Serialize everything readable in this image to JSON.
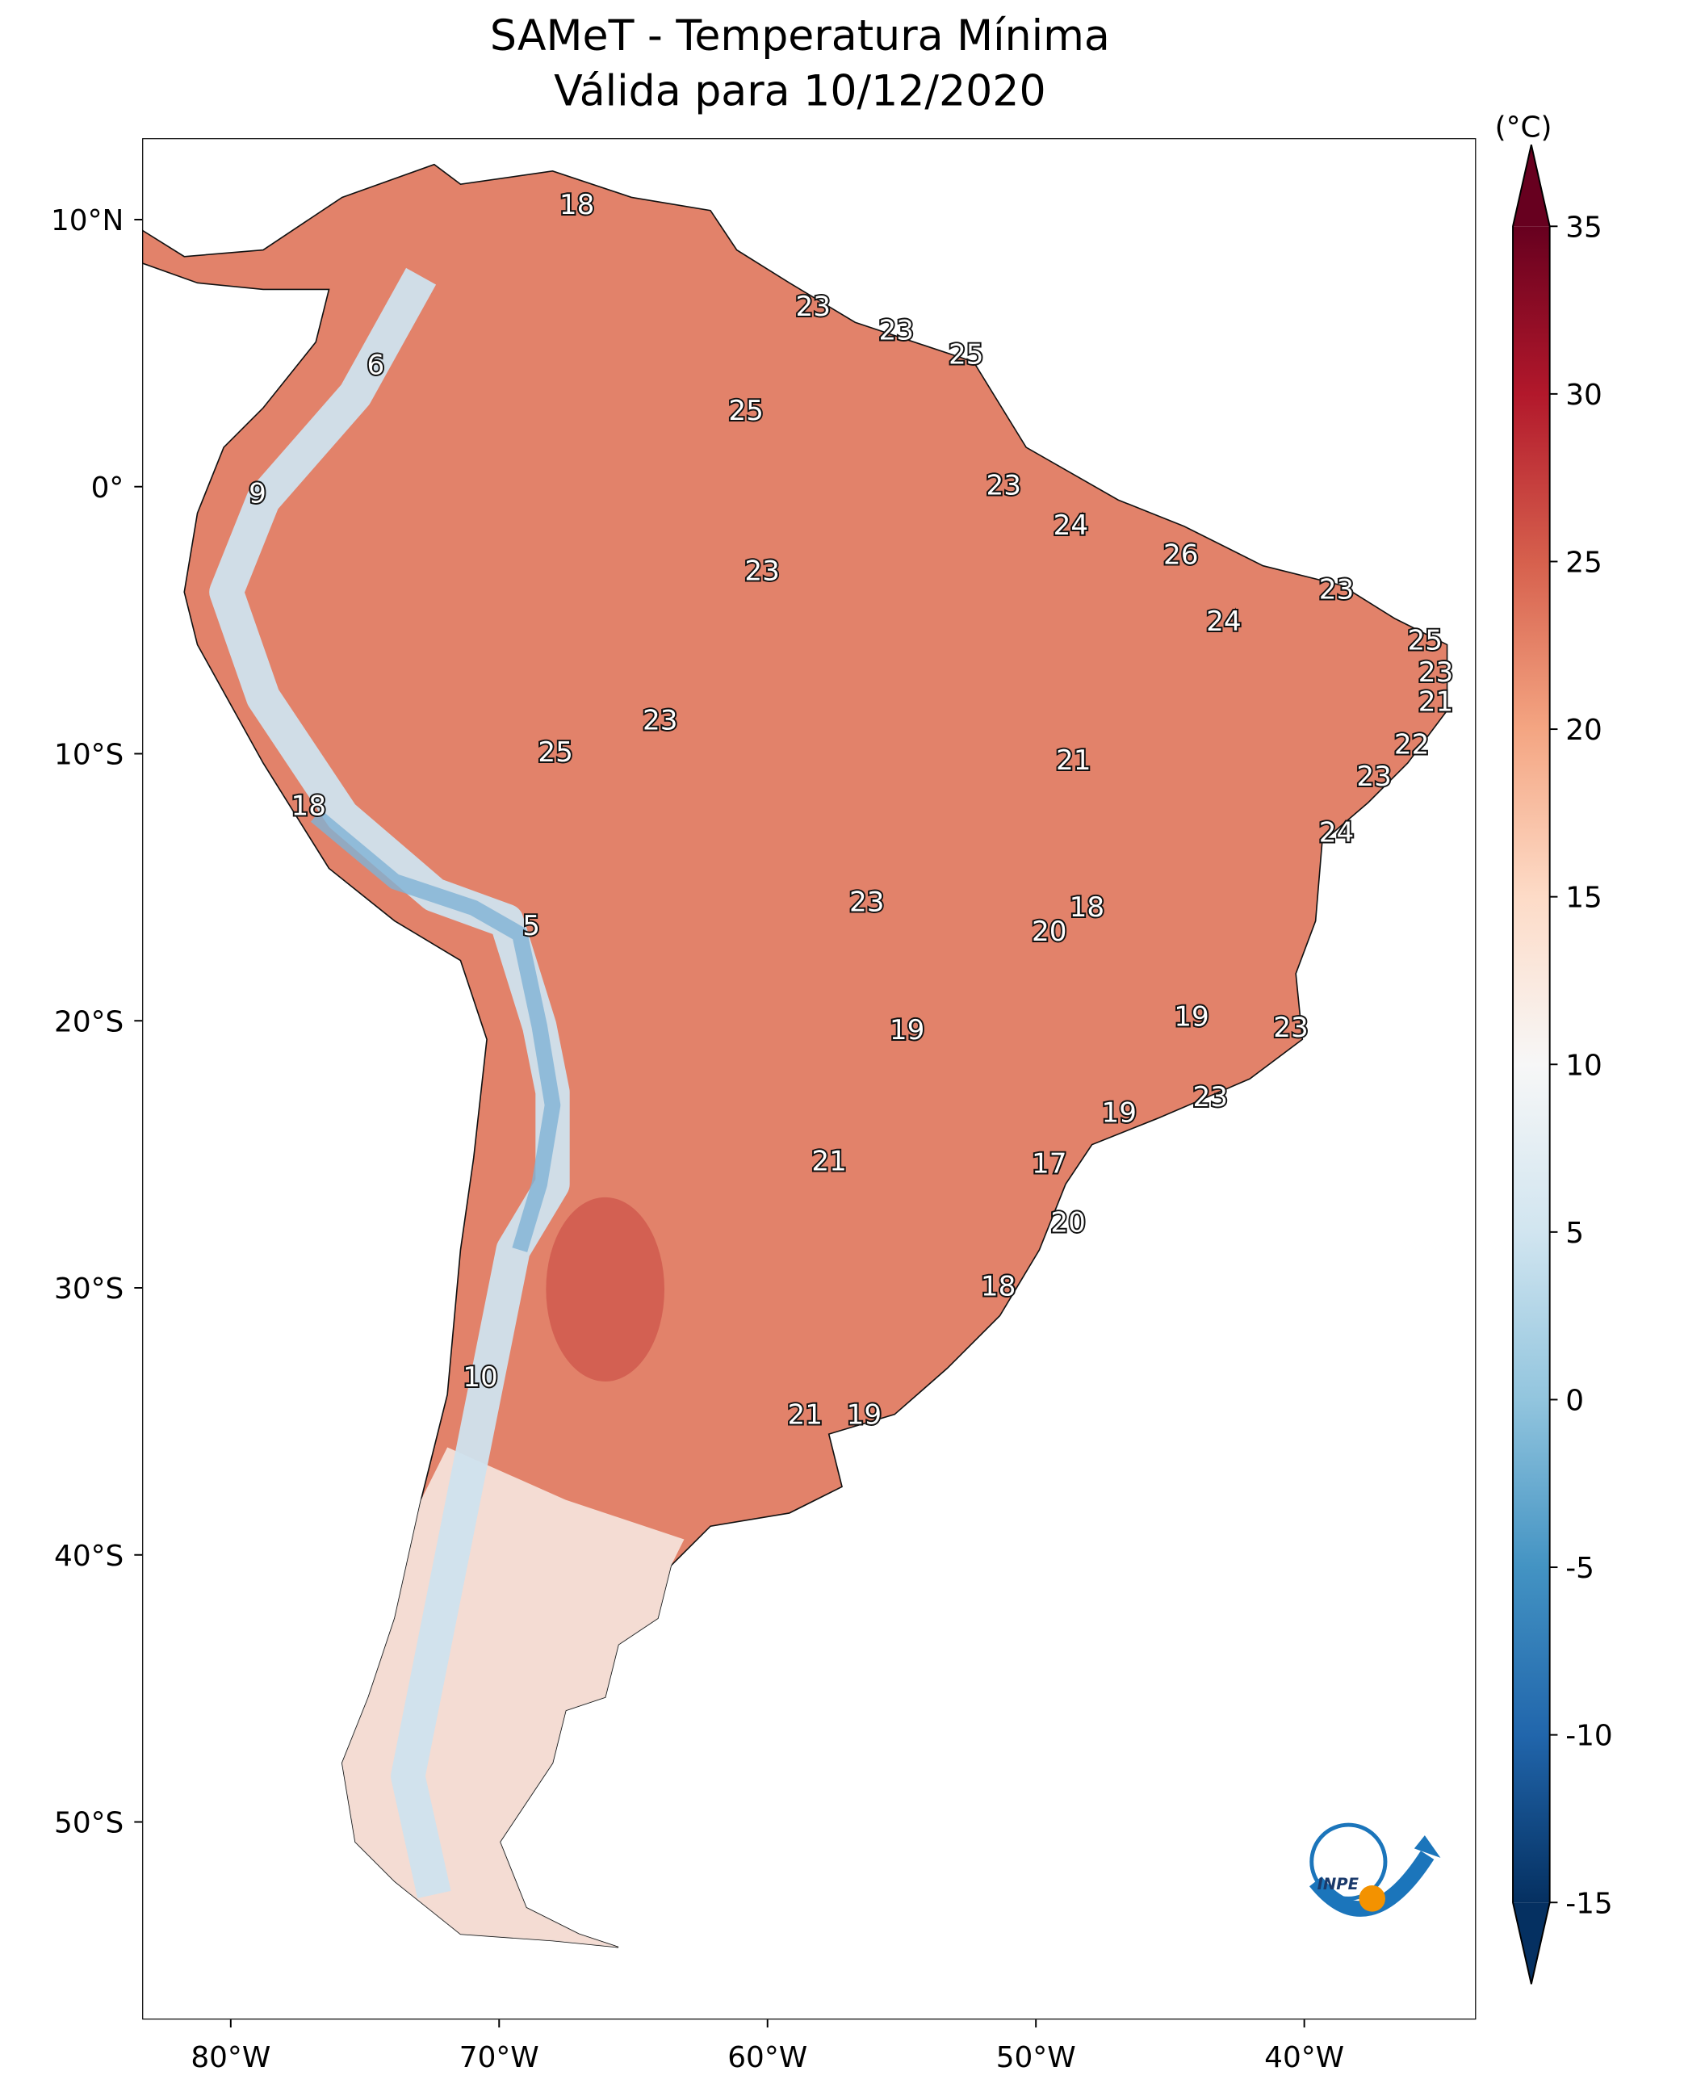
{
  "chart_data": {
    "type": "map",
    "title": "SAMeT - Temperatura Mínima",
    "subtitle": "Válida para 10/12/2020",
    "xlim": [
      -83.3,
      -33.6
    ],
    "ylim": [
      -57.4,
      13.05
    ],
    "xticks": [
      {
        "value": -80,
        "label": "80°W"
      },
      {
        "value": -70,
        "label": "70°W"
      },
      {
        "value": -60,
        "label": "60°W"
      },
      {
        "value": -50,
        "label": "50°W"
      },
      {
        "value": -40,
        "label": "40°W"
      }
    ],
    "yticks": [
      {
        "value": 10,
        "label": "10°N"
      },
      {
        "value": 0,
        "label": "0°"
      },
      {
        "value": -10,
        "label": "10°S"
      },
      {
        "value": -20,
        "label": "20°S"
      },
      {
        "value": -30,
        "label": "30°S"
      },
      {
        "value": -40,
        "label": "40°S"
      },
      {
        "value": -50,
        "label": "50°S"
      }
    ],
    "colorbar": {
      "label": "(°C)",
      "lim": [
        -15,
        35
      ],
      "ticks": [
        35,
        30,
        25,
        20,
        15,
        10,
        5,
        0,
        -5,
        -10,
        -15
      ],
      "extend": "both",
      "colors": [
        "#053061",
        "#2166ac",
        "#4393c3",
        "#92c5de",
        "#d1e5f0",
        "#f7f7f7",
        "#fddbc7",
        "#f4a582",
        "#d6604d",
        "#b2182b",
        "#67001f"
      ]
    },
    "logo_text": "INPE",
    "stations": [
      {
        "value": 18,
        "lon": -67.1,
        "lat": 10.6
      },
      {
        "value": 23,
        "lon": -58.3,
        "lat": 6.8
      },
      {
        "value": 23,
        "lon": -55.2,
        "lat": 5.9
      },
      {
        "value": 25,
        "lon": -52.6,
        "lat": 5.0
      },
      {
        "value": 6,
        "lon": -74.6,
        "lat": 4.6
      },
      {
        "value": 25,
        "lon": -60.8,
        "lat": 2.9
      },
      {
        "value": 9,
        "lon": -79.0,
        "lat": -0.2
      },
      {
        "value": 23,
        "lon": -51.2,
        "lat": 0.1
      },
      {
        "value": 24,
        "lon": -48.7,
        "lat": -1.4
      },
      {
        "value": 26,
        "lon": -44.6,
        "lat": -2.5
      },
      {
        "value": 23,
        "lon": -60.2,
        "lat": -3.1
      },
      {
        "value": 23,
        "lon": -38.8,
        "lat": -3.8
      },
      {
        "value": 24,
        "lon": -43.0,
        "lat": -5.0
      },
      {
        "value": 25,
        "lon": -35.5,
        "lat": -5.7
      },
      {
        "value": 23,
        "lon": -35.1,
        "lat": -6.9
      },
      {
        "value": 21,
        "lon": -35.1,
        "lat": -8.0
      },
      {
        "value": 23,
        "lon": -64.0,
        "lat": -8.7
      },
      {
        "value": 21,
        "lon": -48.6,
        "lat": -10.2
      },
      {
        "value": 22,
        "lon": -36.0,
        "lat": -9.6
      },
      {
        "value": 25,
        "lon": -67.9,
        "lat": -9.9
      },
      {
        "value": 23,
        "lon": -37.4,
        "lat": -10.8
      },
      {
        "value": 18,
        "lon": -77.1,
        "lat": -11.9
      },
      {
        "value": 24,
        "lon": -38.8,
        "lat": -12.9
      },
      {
        "value": 23,
        "lon": -56.3,
        "lat": -15.5
      },
      {
        "value": 18,
        "lon": -48.1,
        "lat": -15.7
      },
      {
        "value": 20,
        "lon": -49.5,
        "lat": -16.6
      },
      {
        "value": 5,
        "lon": -68.8,
        "lat": -16.4
      },
      {
        "value": 19,
        "lon": -44.2,
        "lat": -19.8
      },
      {
        "value": 23,
        "lon": -40.5,
        "lat": -20.2
      },
      {
        "value": 19,
        "lon": -54.8,
        "lat": -20.3
      },
      {
        "value": 23,
        "lon": -43.5,
        "lat": -22.8
      },
      {
        "value": 19,
        "lon": -46.9,
        "lat": -23.4
      },
      {
        "value": 21,
        "lon": -57.7,
        "lat": -25.2
      },
      {
        "value": 17,
        "lon": -49.5,
        "lat": -25.3
      },
      {
        "value": 20,
        "lon": -48.8,
        "lat": -27.5
      },
      {
        "value": 18,
        "lon": -51.4,
        "lat": -29.9
      },
      {
        "value": 10,
        "lon": -70.7,
        "lat": -33.3
      },
      {
        "value": 21,
        "lon": -58.6,
        "lat": -34.7
      },
      {
        "value": 19,
        "lon": -56.4,
        "lat": -34.7
      }
    ]
  }
}
